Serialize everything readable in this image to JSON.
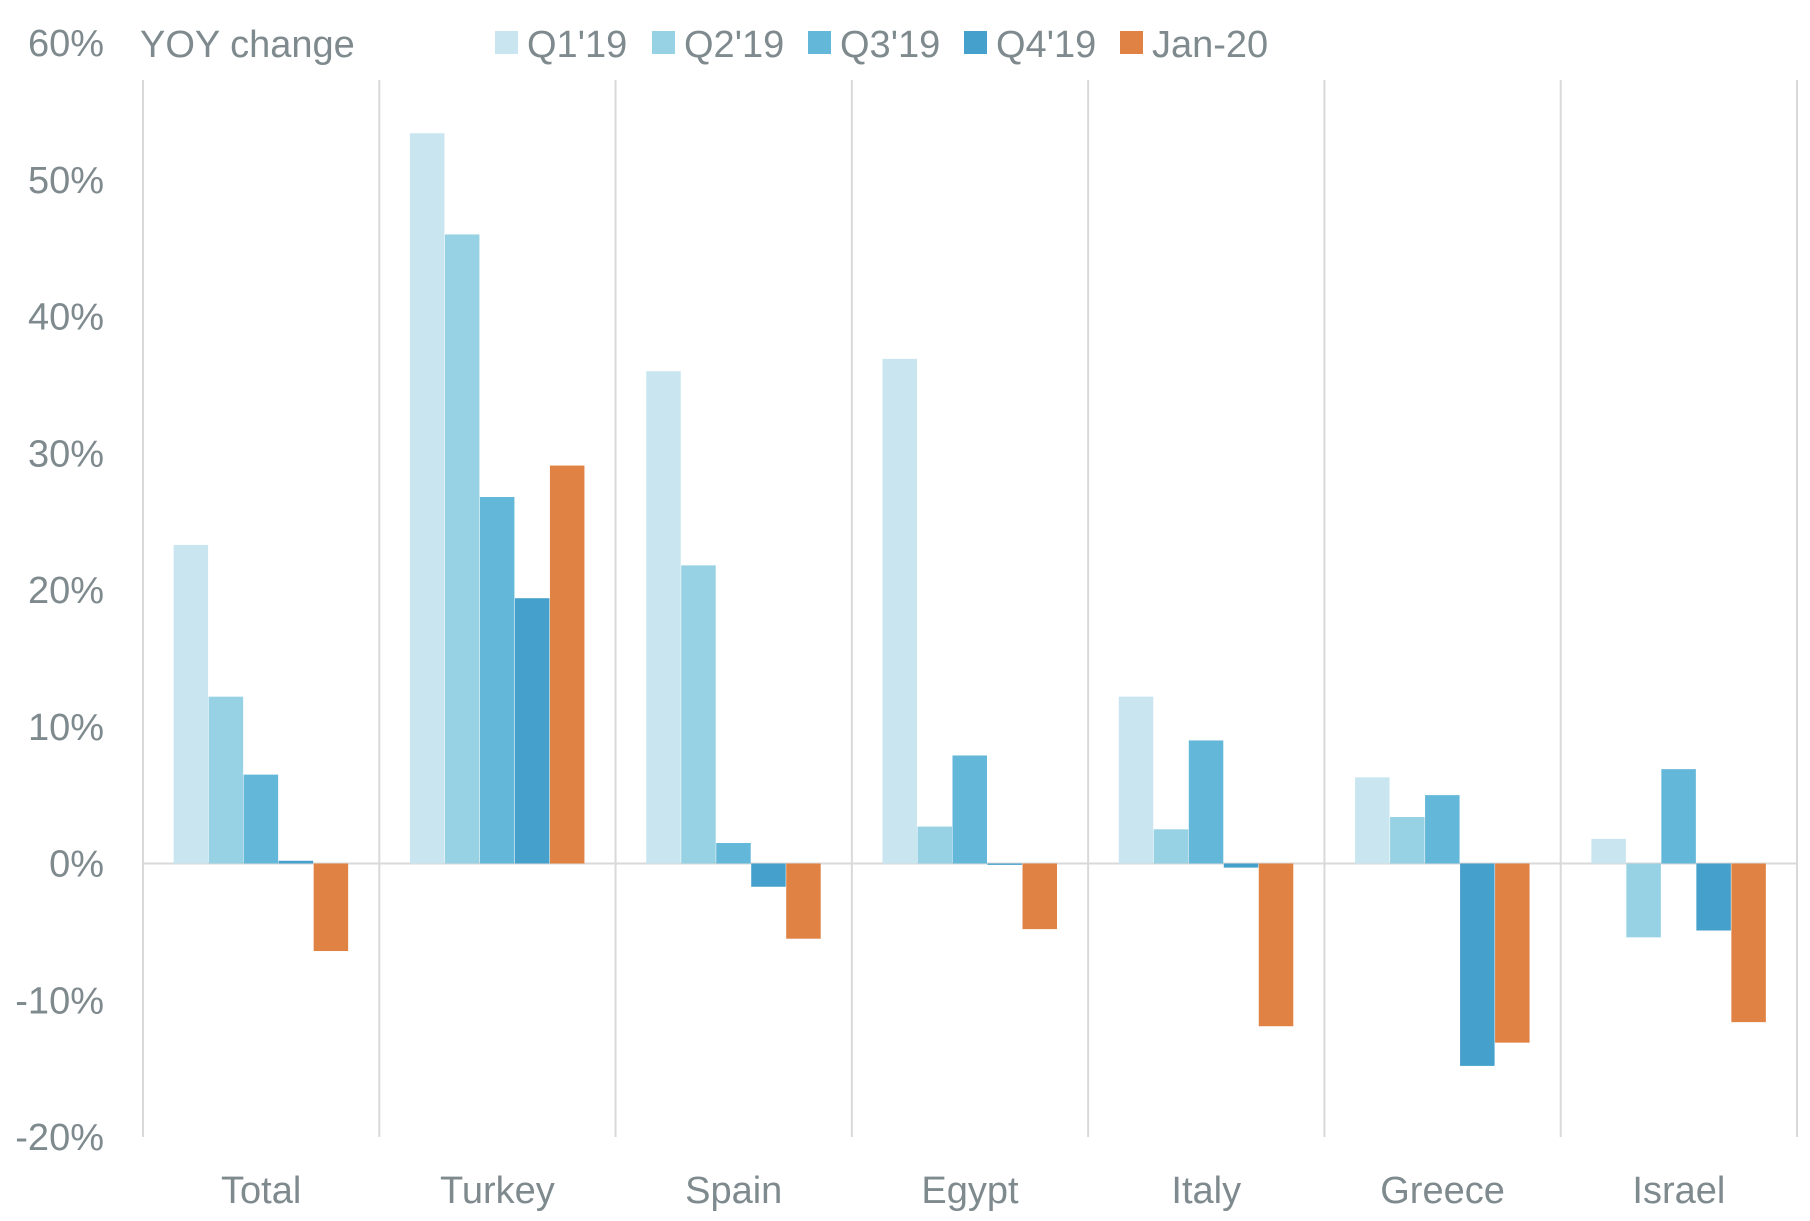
{
  "chart_data": {
    "type": "bar",
    "title": "YOY change",
    "categories": [
      "Total",
      "Turkey",
      "Spain",
      "Egypt",
      "Italy",
      "Greece",
      "Israel"
    ],
    "series": [
      {
        "name": "Q1'19",
        "color": "#c9e6f0",
        "values": [
          23.3,
          53.4,
          36.0,
          36.9,
          12.2,
          6.3,
          1.8
        ]
      },
      {
        "name": "Q2'19",
        "color": "#96d1e4",
        "values": [
          12.2,
          46.0,
          21.8,
          2.7,
          2.5,
          3.4,
          -5.4
        ]
      },
      {
        "name": "Q3'19",
        "color": "#63b7d8",
        "values": [
          6.5,
          26.8,
          1.5,
          7.9,
          9.0,
          5.0,
          6.9
        ]
      },
      {
        "name": "Q4'19",
        "color": "#45a0cb",
        "values": [
          0.2,
          19.4,
          -1.7,
          -0.1,
          -0.3,
          -14.8,
          -4.9
        ]
      },
      {
        "name": "Jan-20",
        "color": "#e08244",
        "values": [
          -6.4,
          29.1,
          -5.5,
          -4.8,
          -11.9,
          -13.1,
          -11.6
        ]
      }
    ],
    "ylim": [
      -20,
      60
    ],
    "yticks": [
      -20,
      -10,
      0,
      10,
      20,
      30,
      40,
      50,
      60
    ],
    "ytick_labels": [
      "-20%",
      "-10%",
      "0%",
      "10%",
      "20%",
      "30%",
      "40%",
      "50%",
      "60%"
    ],
    "xlabel": "",
    "ylabel": "",
    "legend_position": "top",
    "grid": "vertical category separators"
  }
}
